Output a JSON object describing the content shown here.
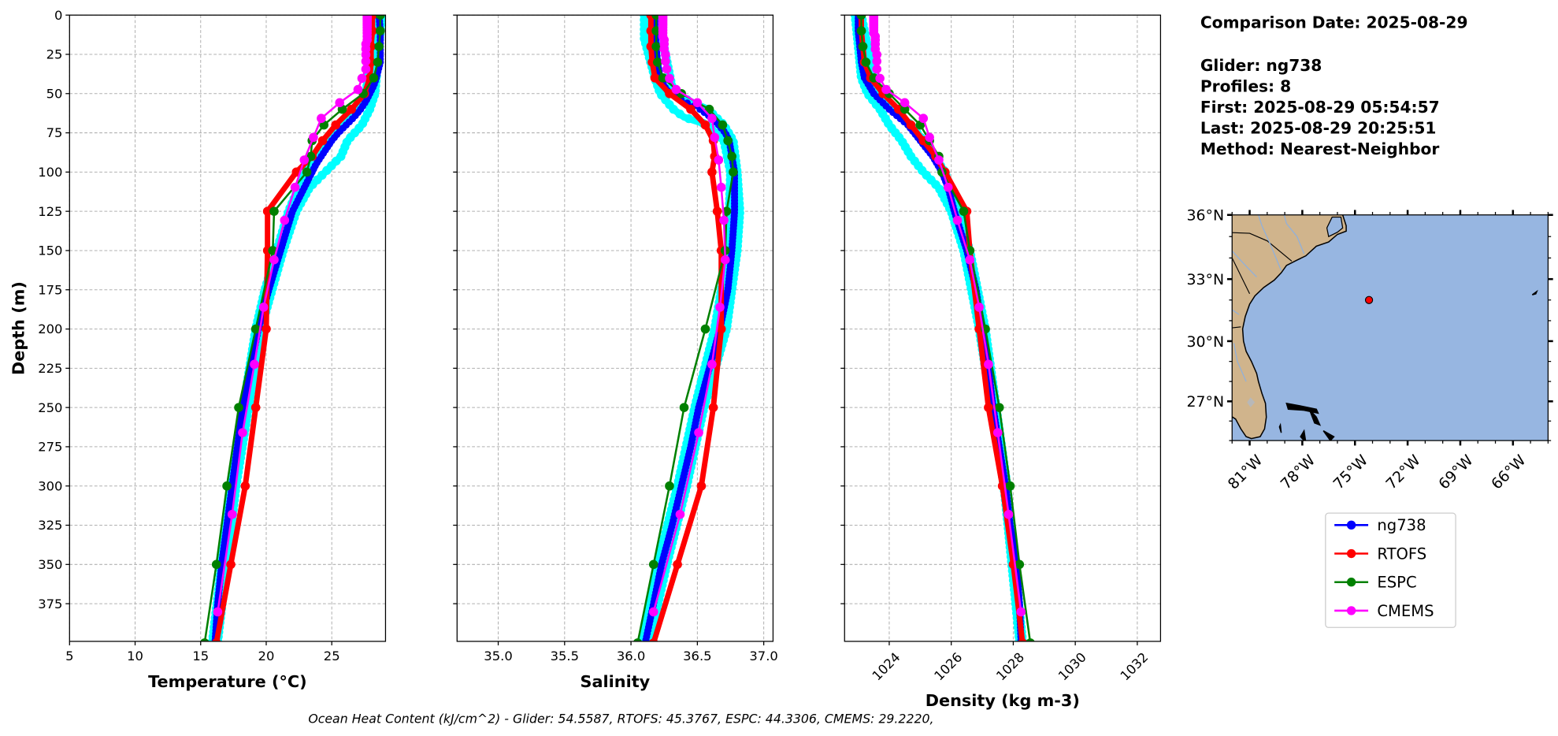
{
  "info": {
    "comparison_date": "Comparison Date: 2025-08-29",
    "glider": "Glider: ng738",
    "profiles": "Profiles: 8",
    "first": "First: 2025-08-29 05:54:57",
    "last": "Last: 2025-08-29 20:25:51",
    "method": "Method: Nearest-Neighbor"
  },
  "footer": "Ocean Heat Content (kJ/cm^2) - Glider: 54.5587,  RTOFS: 45.3767,  ESPC: 44.3306,  CMEMS: 29.2220,",
  "legend": [
    {
      "label": "ng738",
      "color": "#0000ff"
    },
    {
      "label": "RTOFS",
      "color": "#ff0000"
    },
    {
      "label": "ESPC",
      "color": "#008000"
    },
    {
      "label": "CMEMS",
      "color": "#ff00ff"
    }
  ],
  "map": {
    "lon_range": [
      -82,
      -64
    ],
    "lat_range": [
      25,
      36
    ],
    "lon_ticks": [
      -81,
      -78,
      -75,
      -72,
      -69,
      -66
    ],
    "lon_labels": [
      "81°W",
      "78°W",
      "75°W",
      "72°W",
      "69°W",
      "66°W"
    ],
    "lat_ticks": [
      27,
      30,
      33,
      36
    ],
    "lat_labels": [
      "27°N",
      "30°N",
      "33°N",
      "36°N"
    ],
    "glider_position": {
      "lon": -74.2,
      "lat": 32.0
    },
    "land_color": "#d0b48c",
    "ocean_color": "#97b6e1",
    "marker_color": "#ff0000"
  },
  "chart_data": [
    {
      "type": "line",
      "xlabel": "Temperature (°C)",
      "ylabel": "Depth (m)",
      "xlim": [
        5,
        29.1
      ],
      "ylim": [
        399,
        0
      ],
      "xticks": [
        5,
        10,
        15,
        20,
        25
      ],
      "xtick_labels": [
        "5",
        "10",
        "15",
        "20",
        "25"
      ],
      "yticks": [
        0,
        25,
        50,
        75,
        100,
        125,
        150,
        175,
        200,
        225,
        250,
        275,
        300,
        325,
        350,
        375
      ],
      "ytick_labels": [
        "0",
        "25",
        "50",
        "75",
        "100",
        "125",
        "150",
        "175",
        "200",
        "225",
        "250",
        "275",
        "300",
        "325",
        "350",
        "375"
      ],
      "show_ytick_labels": true,
      "rotate_xticks": false,
      "grid": true,
      "glider_profiles_spread": [
        {
          "color": "#00ffff",
          "depth": [
            0,
            50,
            60,
            70,
            80,
            90,
            100,
            110,
            125,
            150,
            200,
            300,
            399
          ],
          "values": [
            28.8,
            28.3,
            27.9,
            27.3,
            26.2,
            25.7,
            24.5,
            23.3,
            22.3,
            21.3,
            19.6,
            17.7,
            16.3
          ]
        },
        {
          "color": "#00ffff",
          "depth": [
            0,
            50,
            60,
            70,
            80,
            90,
            100,
            125,
            150,
            175,
            200,
            300,
            399
          ],
          "values": [
            28.4,
            27.6,
            26.8,
            25.7,
            24.6,
            23.8,
            23.0,
            21.7,
            20.8,
            19.9,
            19.2,
            17.3,
            15.9
          ]
        }
      ],
      "series": [
        {
          "name": "ng738",
          "color": "#0000ff",
          "depth": [
            0,
            10,
            20,
            30,
            40,
            45,
            50,
            55,
            60,
            65,
            70,
            75,
            80,
            85,
            90,
            95,
            100,
            110,
            125,
            150,
            175,
            200,
            225,
            250,
            275,
            300,
            325,
            350,
            375,
            399
          ],
          "values": [
            28.6,
            28.7,
            28.7,
            28.7,
            28.4,
            28.2,
            27.9,
            27.6,
            27.2,
            26.7,
            26.1,
            25.5,
            25.0,
            24.6,
            24.2,
            23.8,
            23.5,
            22.9,
            22.0,
            21.1,
            20.2,
            19.4,
            18.8,
            18.2,
            17.8,
            17.4,
            17.0,
            16.6,
            16.3,
            16.1
          ]
        },
        {
          "name": "RTOFS",
          "color": "#ff0000",
          "depth": [
            0,
            10,
            20,
            30,
            40,
            50,
            60,
            70,
            80,
            90,
            100,
            125,
            150,
            200,
            250,
            300,
            350,
            400
          ],
          "values": [
            28.1,
            28.1,
            28.0,
            28.0,
            27.9,
            27.5,
            26.5,
            25.3,
            24.3,
            23.5,
            22.3,
            20.1,
            20.1,
            20.0,
            19.2,
            18.4,
            17.3,
            16.2
          ]
        },
        {
          "name": "ESPC",
          "color": "#008000",
          "depth": [
            0,
            10,
            20,
            30,
            40,
            50,
            60,
            70,
            80,
            90,
            100,
            125,
            150,
            200,
            250,
            300,
            350,
            400
          ],
          "values": [
            28.7,
            28.7,
            28.6,
            28.5,
            28.2,
            27.4,
            25.8,
            24.4,
            23.5,
            23.4,
            23.1,
            20.6,
            20.5,
            19.2,
            17.9,
            17.0,
            16.2,
            15.3
          ]
        },
        {
          "name": "CMEMS",
          "color": "#ff00ff",
          "depth": [
            0.5,
            1.5,
            2.6,
            3.8,
            5.1,
            6.4,
            7.9,
            9.6,
            11.4,
            13.5,
            15.8,
            18.5,
            21.6,
            25.2,
            29.4,
            34.4,
            40.3,
            47.4,
            55.8,
            65.8,
            77.9,
            92.3,
            109.7,
            130.7,
            155.9,
            186.1,
            222.5,
            266.0,
            318.1,
            380.2
          ],
          "values": [
            27.7,
            27.7,
            27.7,
            27.7,
            27.7,
            27.7,
            27.7,
            27.7,
            27.7,
            27.7,
            27.7,
            27.6,
            27.6,
            27.6,
            27.6,
            27.6,
            27.3,
            27.0,
            25.6,
            24.2,
            23.6,
            22.9,
            22.2,
            21.4,
            20.6,
            19.8,
            19.1,
            18.2,
            17.4,
            16.3
          ]
        }
      ]
    },
    {
      "type": "line",
      "xlabel": "Salinity",
      "xlim": [
        34.69,
        37.07
      ],
      "ylim": [
        399,
        0
      ],
      "xticks": [
        35.0,
        35.5,
        36.0,
        36.5,
        37.0
      ],
      "xtick_labels": [
        "35.0",
        "35.5",
        "36.0",
        "36.5",
        "37.0"
      ],
      "yticks": [
        0,
        25,
        50,
        75,
        100,
        125,
        150,
        175,
        200,
        225,
        250,
        275,
        300,
        325,
        350,
        375
      ],
      "show_ytick_labels": false,
      "rotate_xticks": false,
      "grid": true,
      "glider_profiles_spread": [
        {
          "color": "#00ffff",
          "depth": [
            0,
            15,
            40,
            50,
            60,
            65,
            70,
            80,
            100,
            150,
            200,
            250,
            300,
            350,
            399
          ],
          "values": [
            36.1,
            36.1,
            36.18,
            36.22,
            36.32,
            36.4,
            36.58,
            36.7,
            36.75,
            36.73,
            36.63,
            36.48,
            36.35,
            36.2,
            36.08
          ]
        },
        {
          "color": "#00ffff",
          "depth": [
            0,
            50,
            60,
            70,
            80,
            100,
            125,
            150,
            200,
            250,
            300,
            350,
            399
          ],
          "values": [
            36.2,
            36.32,
            36.58,
            36.7,
            36.77,
            36.8,
            36.82,
            36.8,
            36.72,
            36.55,
            36.42,
            36.27,
            36.14
          ]
        }
      ],
      "series": [
        {
          "name": "ng738",
          "color": "#0000ff",
          "depth": [
            0,
            10,
            20,
            30,
            40,
            45,
            50,
            55,
            60,
            65,
            70,
            75,
            80,
            85,
            90,
            95,
            100,
            110,
            125,
            150,
            175,
            200,
            225,
            250,
            275,
            300,
            325,
            350,
            375,
            399
          ],
          "values": [
            36.18,
            36.18,
            36.19,
            36.2,
            36.22,
            36.25,
            36.29,
            36.4,
            36.52,
            36.6,
            36.66,
            36.71,
            36.74,
            36.75,
            36.76,
            36.77,
            36.78,
            36.78,
            36.78,
            36.76,
            36.73,
            36.67,
            36.59,
            36.51,
            36.45,
            36.38,
            36.31,
            36.23,
            36.17,
            36.11
          ]
        },
        {
          "name": "RTOFS",
          "color": "#ff0000",
          "depth": [
            0,
            10,
            20,
            30,
            40,
            50,
            60,
            70,
            80,
            90,
            100,
            125,
            150,
            200,
            250,
            300,
            350,
            400
          ],
          "values": [
            36.15,
            36.15,
            36.15,
            36.16,
            36.18,
            36.29,
            36.45,
            36.56,
            36.62,
            36.63,
            36.61,
            36.65,
            36.68,
            36.68,
            36.62,
            36.53,
            36.35,
            36.17
          ]
        },
        {
          "name": "ESPC",
          "color": "#008000",
          "depth": [
            0,
            10,
            20,
            30,
            40,
            50,
            60,
            70,
            80,
            90,
            100,
            125,
            150,
            200,
            250,
            300,
            350,
            400
          ],
          "values": [
            36.19,
            36.19,
            36.19,
            36.2,
            36.24,
            36.38,
            36.59,
            36.69,
            36.73,
            36.76,
            36.77,
            36.72,
            36.71,
            36.56,
            36.4,
            36.29,
            36.17,
            36.05
          ]
        },
        {
          "name": "CMEMS",
          "color": "#ff00ff",
          "depth": [
            0.5,
            1.5,
            2.6,
            3.8,
            5.1,
            6.4,
            7.9,
            9.6,
            11.4,
            13.5,
            15.8,
            18.5,
            21.6,
            25.2,
            29.4,
            34.4,
            40.3,
            47.4,
            55.8,
            65.8,
            77.9,
            92.3,
            109.7,
            130.7,
            155.9,
            186.1,
            222.5,
            266.0,
            318.1,
            380.2
          ],
          "values": [
            36.24,
            36.24,
            36.24,
            36.24,
            36.24,
            36.24,
            36.24,
            36.24,
            36.24,
            36.24,
            36.25,
            36.25,
            36.25,
            36.26,
            36.26,
            36.27,
            36.29,
            36.34,
            36.5,
            36.61,
            36.63,
            36.66,
            36.68,
            36.7,
            36.71,
            36.67,
            36.61,
            36.51,
            36.37,
            36.17
          ]
        }
      ]
    },
    {
      "type": "line",
      "xlabel": "Density (kg m-3)",
      "xlim": [
        1022.56,
        1032.75
      ],
      "ylim": [
        399,
        0
      ],
      "xticks": [
        1024,
        1026,
        1028,
        1030,
        1032
      ],
      "xtick_labels": [
        "1024",
        "1026",
        "1028",
        "1030",
        "1032"
      ],
      "yticks": [
        0,
        25,
        50,
        75,
        100,
        125,
        150,
        175,
        200,
        225,
        250,
        275,
        300,
        325,
        350,
        375
      ],
      "show_ytick_labels": false,
      "rotate_xticks": true,
      "grid": true,
      "glider_profiles_spread": [
        {
          "color": "#00ffff",
          "depth": [
            0,
            40,
            50,
            60,
            70,
            80,
            90,
            100,
            110,
            125,
            150,
            200,
            300,
            399
          ],
          "values": [
            1022.9,
            1023.1,
            1023.3,
            1023.7,
            1024.0,
            1024.4,
            1024.7,
            1025.1,
            1025.6,
            1026.0,
            1026.4,
            1026.9,
            1027.7,
            1028.2
          ]
        },
        {
          "color": "#00ffff",
          "depth": [
            0,
            50,
            60,
            70,
            80,
            100,
            125,
            150,
            200,
            300,
            399
          ],
          "values": [
            1023.1,
            1023.6,
            1024.1,
            1024.7,
            1025.1,
            1025.8,
            1026.2,
            1026.6,
            1027.1,
            1027.8,
            1028.3
          ]
        }
      ],
      "series": [
        {
          "name": "ng738",
          "color": "#0000ff",
          "depth": [
            0,
            10,
            20,
            30,
            40,
            45,
            50,
            55,
            60,
            65,
            70,
            75,
            80,
            85,
            90,
            95,
            100,
            110,
            125,
            150,
            175,
            200,
            225,
            250,
            275,
            300,
            325,
            350,
            375,
            399
          ],
          "values": [
            1023.0,
            1023.0,
            1023.05,
            1023.1,
            1023.2,
            1023.35,
            1023.5,
            1023.75,
            1024.0,
            1024.3,
            1024.6,
            1024.8,
            1025.0,
            1025.2,
            1025.4,
            1025.55,
            1025.7,
            1025.9,
            1026.1,
            1026.5,
            1026.8,
            1027.0,
            1027.2,
            1027.35,
            1027.55,
            1027.75,
            1027.9,
            1028.1,
            1028.2,
            1028.25
          ]
        },
        {
          "name": "RTOFS",
          "color": "#ff0000",
          "depth": [
            0,
            10,
            20,
            30,
            40,
            50,
            60,
            70,
            80,
            90,
            100,
            125,
            150,
            200,
            250,
            300,
            350,
            400
          ],
          "values": [
            1023.1,
            1023.1,
            1023.15,
            1023.2,
            1023.4,
            1023.8,
            1024.3,
            1024.7,
            1025.1,
            1025.5,
            1025.8,
            1026.5,
            1026.6,
            1026.9,
            1027.2,
            1027.65,
            1028.0,
            1028.3
          ]
        },
        {
          "name": "ESPC",
          "color": "#008000",
          "depth": [
            0,
            10,
            20,
            30,
            40,
            50,
            60,
            70,
            80,
            90,
            100,
            125,
            150,
            200,
            250,
            300,
            350,
            400
          ],
          "values": [
            1023.1,
            1023.1,
            1023.15,
            1023.25,
            1023.5,
            1024.0,
            1024.5,
            1025.0,
            1025.3,
            1025.6,
            1025.7,
            1026.4,
            1026.6,
            1027.1,
            1027.55,
            1027.9,
            1028.2,
            1028.55
          ]
        },
        {
          "name": "CMEMS",
          "color": "#ff00ff",
          "depth": [
            0.5,
            1.5,
            2.6,
            3.8,
            5.1,
            6.4,
            7.9,
            9.6,
            11.4,
            13.5,
            15.8,
            18.5,
            21.6,
            25.2,
            29.4,
            34.4,
            40.3,
            47.4,
            55.8,
            65.8,
            77.9,
            92.3,
            109.7,
            130.7,
            155.9,
            186.1,
            222.5,
            266.0,
            318.1,
            380.2
          ],
          "values": [
            1023.5,
            1023.5,
            1023.5,
            1023.5,
            1023.5,
            1023.5,
            1023.5,
            1023.5,
            1023.5,
            1023.55,
            1023.55,
            1023.55,
            1023.55,
            1023.6,
            1023.6,
            1023.6,
            1023.7,
            1023.9,
            1024.5,
            1025.1,
            1025.3,
            1025.6,
            1025.9,
            1026.2,
            1026.6,
            1026.9,
            1027.2,
            1027.5,
            1027.85,
            1028.25
          ]
        }
      ]
    }
  ]
}
